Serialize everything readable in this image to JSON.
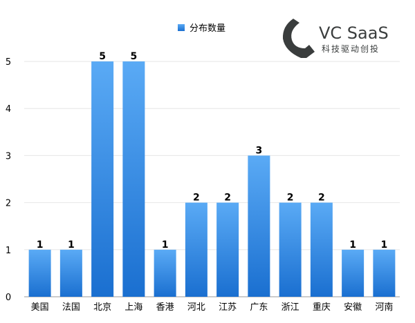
{
  "chart_data": {
    "type": "bar",
    "categories": [
      "美国",
      "法国",
      "北京",
      "上海",
      "香港",
      "河北",
      "江苏",
      "广东",
      "浙江",
      "重庆",
      "安徽",
      "河南"
    ],
    "series": [
      {
        "name": "分布数量",
        "values": [
          1,
          1,
          5,
          5,
          1,
          2,
          2,
          3,
          2,
          2,
          1,
          1
        ]
      }
    ],
    "title": "",
    "xlabel": "",
    "ylabel": "",
    "ylim": [
      0,
      5
    ],
    "yticks": [
      0,
      1,
      2,
      3,
      4,
      5
    ],
    "grid": true,
    "legend": "top-center",
    "data_labels": true,
    "colors": {
      "bar_top": "#5aaaf5",
      "bar_bottom": "#1a6fd0",
      "grid": "#e6e6e6"
    }
  },
  "logo": {
    "title": "VC SaaS",
    "subtitle": "科技驱动创投",
    "color": "#3a3d3d"
  }
}
